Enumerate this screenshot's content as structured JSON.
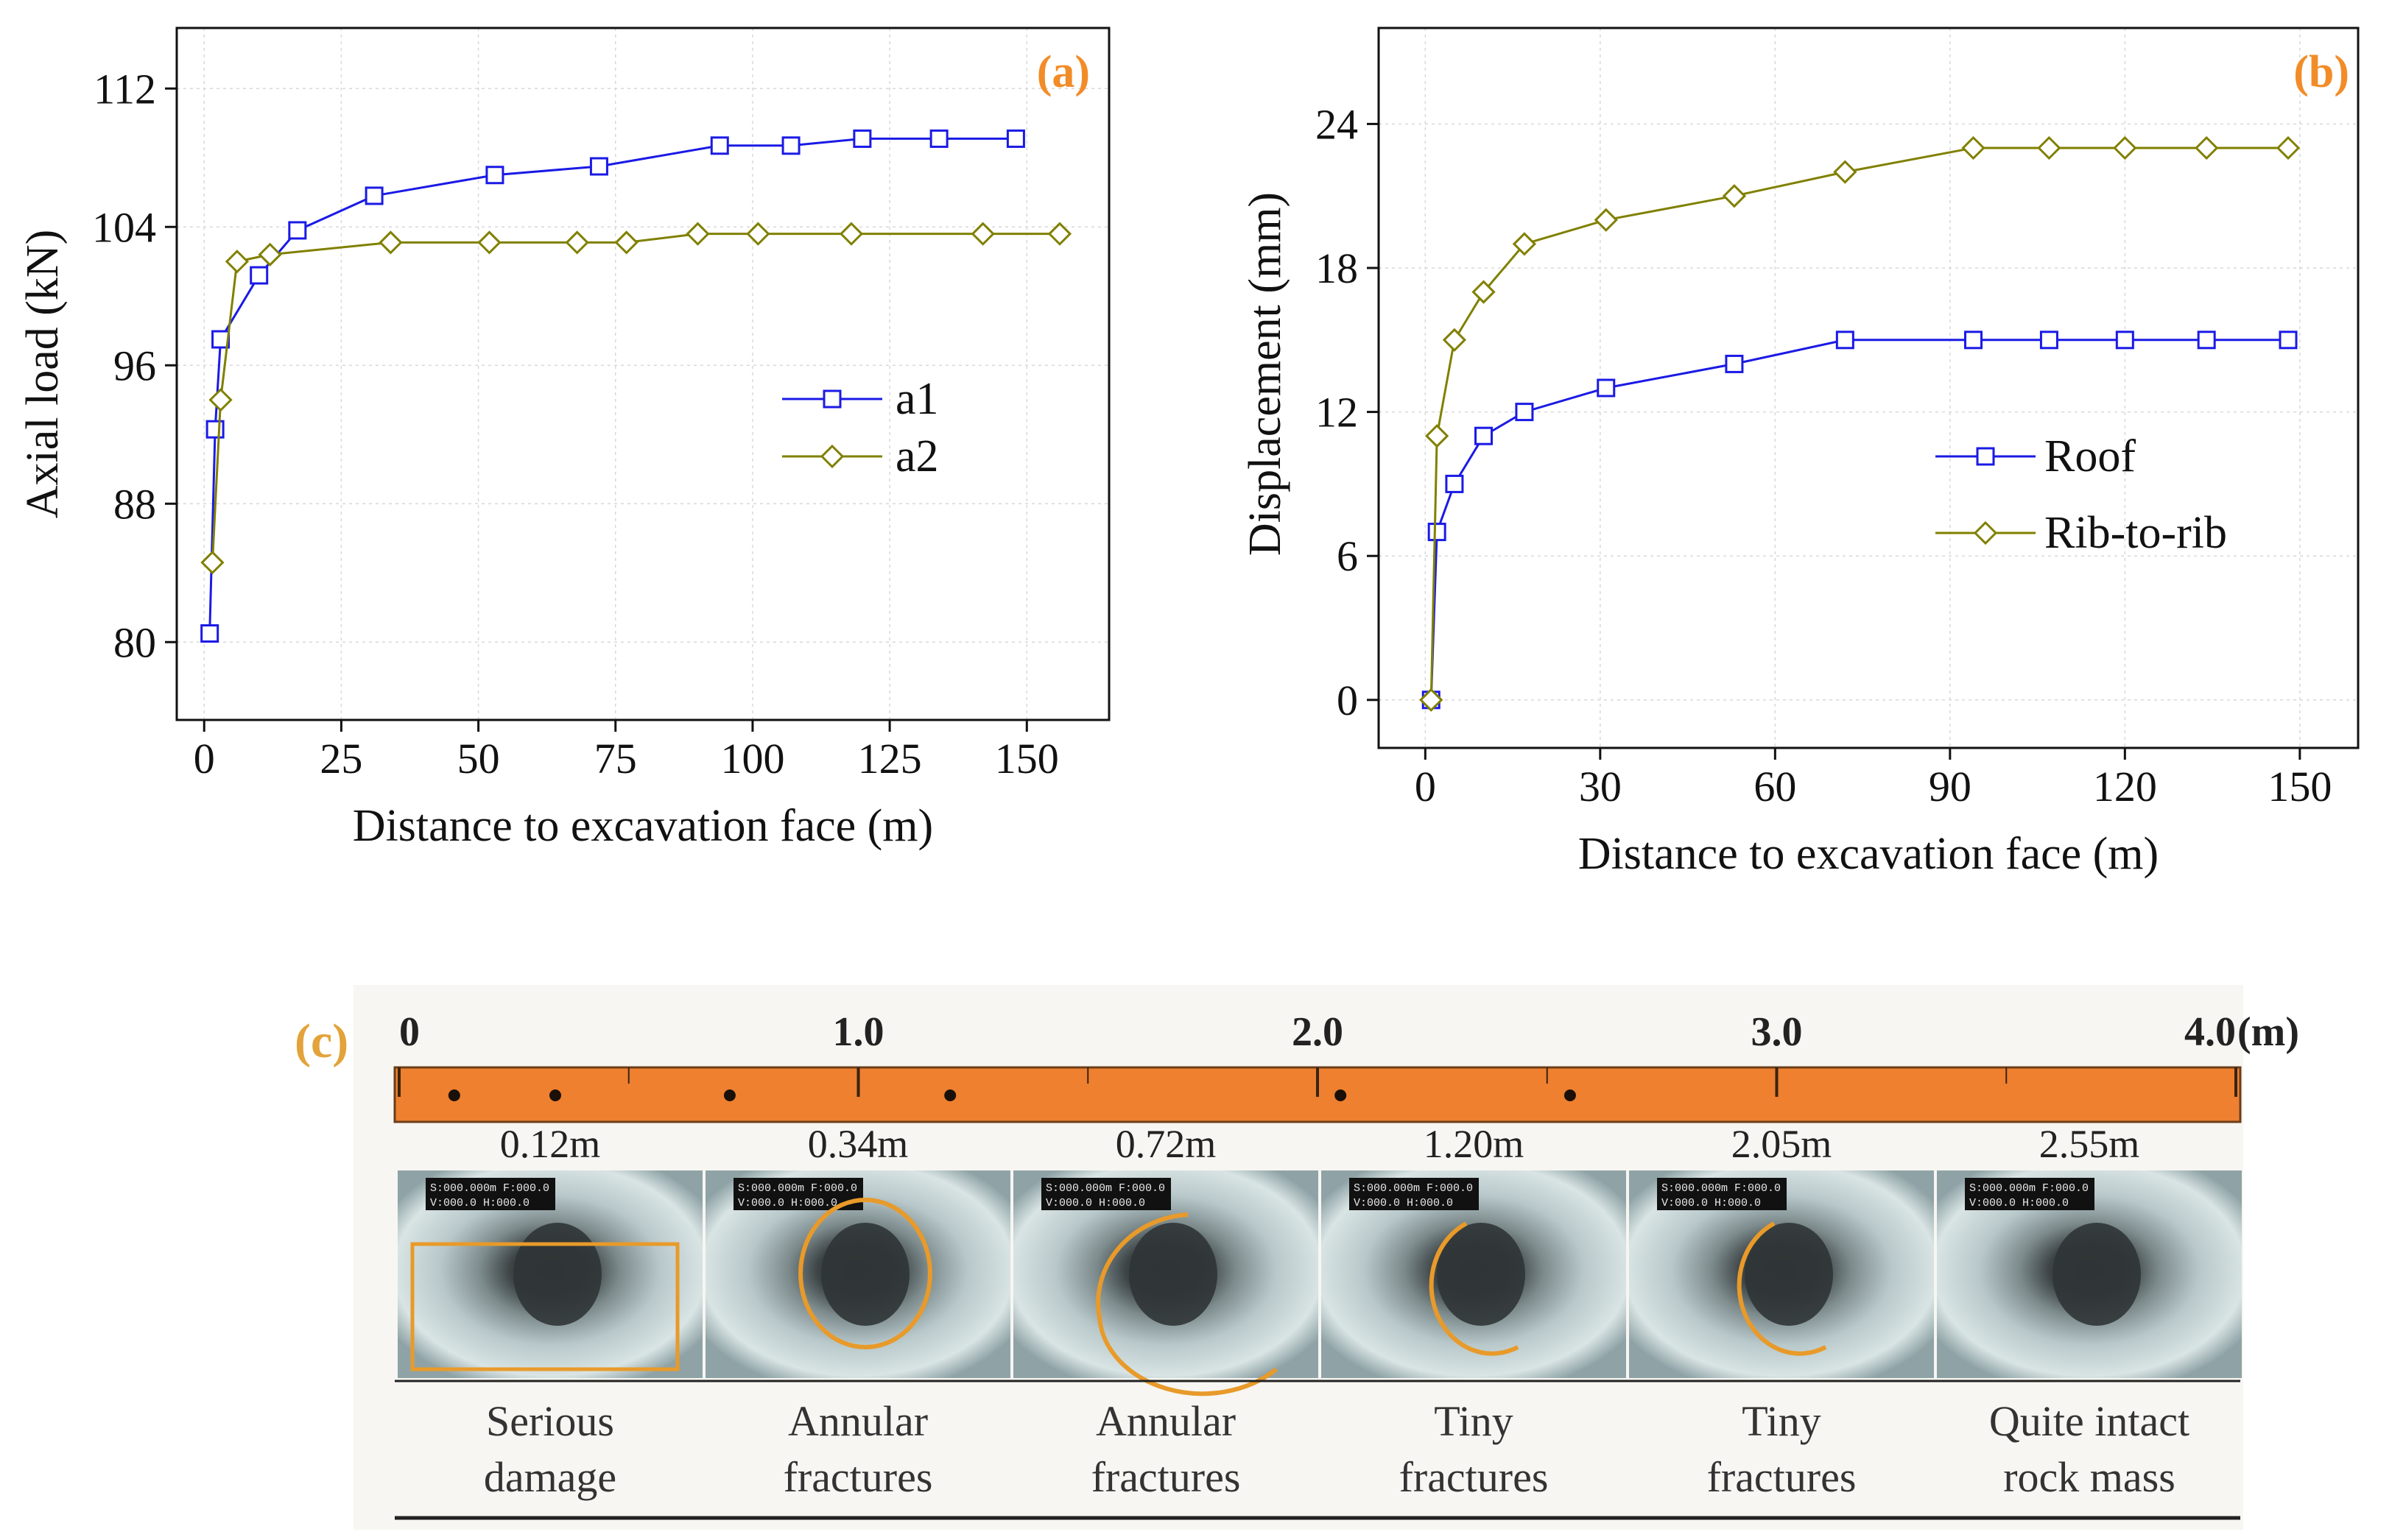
{
  "chart_data": [
    {
      "panel": "(a)",
      "type": "line",
      "xlabel": "Distance to excavation face (m)",
      "ylabel": "Axial load (kN)",
      "xlim": [
        -5,
        165
      ],
      "ylim": [
        75.5,
        115.5
      ],
      "xticks": [
        0,
        25,
        50,
        75,
        100,
        125,
        150
      ],
      "yticks": [
        80,
        88,
        96,
        104,
        112
      ],
      "grid": true,
      "legend_position": "right-middle",
      "series": [
        {
          "name": "a1",
          "color": "#1a1ae6",
          "marker": "square",
          "x": [
            1,
            2,
            3,
            10,
            17,
            31,
            53,
            72,
            94,
            107,
            120,
            134,
            148
          ],
          "y": [
            80.5,
            92.3,
            97.5,
            101.2,
            103.8,
            105.8,
            107,
            107.5,
            108.7,
            108.7,
            109.1,
            109.1,
            109.1
          ]
        },
        {
          "name": "a2",
          "color": "#808000",
          "marker": "diamond",
          "x": [
            1.5,
            3,
            6,
            12,
            34,
            52,
            68,
            77,
            90,
            101,
            118,
            142,
            156
          ],
          "y": [
            84.6,
            94,
            102,
            102.4,
            103.1,
            103.1,
            103.1,
            103.1,
            103.6,
            103.6,
            103.6,
            103.6,
            103.6
          ]
        }
      ]
    },
    {
      "panel": "(b)",
      "type": "line",
      "xlabel": "Distance to excavation face (m)",
      "ylabel": "Displacement (mm)",
      "xlim": [
        -8,
        160
      ],
      "ylim": [
        -2,
        28
      ],
      "xticks": [
        0,
        30,
        60,
        90,
        120,
        150
      ],
      "yticks": [
        0,
        6,
        12,
        18,
        24
      ],
      "grid": true,
      "legend_position": "right-middle",
      "series": [
        {
          "name": "Roof",
          "color": "#1a1ae6",
          "marker": "square",
          "x": [
            1,
            2,
            5,
            10,
            17,
            31,
            53,
            72,
            94,
            107,
            120,
            134,
            148
          ],
          "y": [
            0,
            7,
            9,
            11,
            12,
            13,
            14,
            15,
            15,
            15,
            15,
            15,
            15
          ]
        },
        {
          "name": "Rib-to-rib",
          "color": "#808000",
          "marker": "diamond",
          "x": [
            1,
            2,
            5,
            10,
            17,
            31,
            53,
            72,
            94,
            107,
            120,
            134,
            148
          ],
          "y": [
            0,
            11,
            15,
            17,
            19,
            20,
            21,
            22,
            23,
            23,
            23,
            23,
            23
          ]
        }
      ]
    }
  ],
  "panel_c": {
    "tag": "(c)",
    "unit": "(m)",
    "ruler_color": "#EE8030",
    "ruler_labels": [
      "0",
      "1.0",
      "2.0",
      "3.0",
      "4.0"
    ],
    "ruler_max": 4.0,
    "dots_m": [
      0.12,
      0.34,
      0.72,
      1.2,
      2.05,
      2.55
    ],
    "segments": [
      {
        "depth": "0.12m",
        "desc1": "Serious",
        "desc2": "damage",
        "mark": "rect"
      },
      {
        "depth": "0.34m",
        "desc1": "Annular",
        "desc2": "fractures",
        "mark": "ring"
      },
      {
        "depth": "0.72m",
        "desc1": "Annular",
        "desc2": "fractures",
        "mark": "arc-large"
      },
      {
        "depth": "1.20m",
        "desc1": "Tiny",
        "desc2": "fractures",
        "mark": "arc-small"
      },
      {
        "depth": "2.05m",
        "desc1": "Tiny",
        "desc2": "fractures",
        "mark": "arc-small"
      },
      {
        "depth": "2.55m",
        "desc1": "Quite intact",
        "desc2": "rock mass",
        "mark": "none"
      }
    ],
    "camera_overlay_line1": "S:000.000m  F:000.0",
    "camera_overlay_line2": "V:000.0     H:000.0"
  }
}
